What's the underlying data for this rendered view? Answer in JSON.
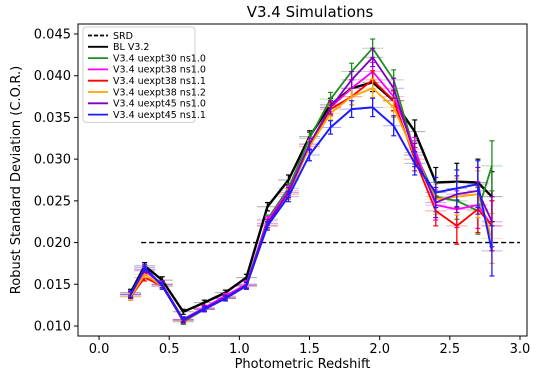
{
  "chart_data": {
    "type": "line",
    "title": "V3.4 Simulations",
    "xlabel": "Photometric Redshift",
    "ylabel": "Robust Standard Deviation (C.O.R.)",
    "xlim": [
      -0.15,
      3.05
    ],
    "ylim": [
      0.0088,
      0.0462
    ],
    "xticks": [
      0.0,
      0.5,
      1.0,
      1.5,
      2.0,
      2.5,
      3.0
    ],
    "xtick_labels": [
      "0.0",
      "0.5",
      "1.0",
      "1.5",
      "2.0",
      "2.5",
      "3.0"
    ],
    "yticks": [
      0.01,
      0.015,
      0.02,
      0.025,
      0.03,
      0.035,
      0.04,
      0.045
    ],
    "ytick_labels": [
      "0.010",
      "0.015",
      "0.020",
      "0.025",
      "0.030",
      "0.035",
      "0.040",
      "0.045"
    ],
    "grid": false,
    "legend_position": "top-left",
    "x": [
      0.225,
      0.325,
      0.45,
      0.6,
      0.75,
      0.9,
      1.05,
      1.2,
      1.35,
      1.5,
      1.65,
      1.8,
      1.95,
      2.1,
      2.25,
      2.4,
      2.55,
      2.7,
      2.8
    ],
    "reference": {
      "name": "SRD",
      "value": 0.02,
      "x_range": [
        0.3,
        3.0
      ],
      "color": "#000000",
      "dashed": true
    },
    "series": [
      {
        "name": "BL V3.2",
        "color": "#000000",
        "width": 2.4,
        "values": [
          0.014,
          0.0172,
          0.0155,
          0.0117,
          0.0128,
          0.014,
          0.0158,
          0.0243,
          0.0275,
          0.0327,
          0.0365,
          0.0385,
          0.0392,
          0.037,
          0.0333,
          0.0272,
          0.0273,
          0.0272,
          0.0255
        ]
      },
      {
        "name": "V3.4 uexpt30 ns1.0",
        "color": "#228b22",
        "width": 1.8,
        "values": [
          0.0138,
          0.0167,
          0.015,
          0.0105,
          0.012,
          0.0135,
          0.015,
          0.0228,
          0.0265,
          0.0325,
          0.0372,
          0.0405,
          0.0433,
          0.0395,
          0.0308,
          0.0255,
          0.025,
          0.0238,
          0.0292
        ]
      },
      {
        "name": "V3.4 uexpt38 ns1.0",
        "color": "#ff00ff",
        "width": 1.8,
        "values": [
          0.0138,
          0.0166,
          0.015,
          0.0108,
          0.0122,
          0.0136,
          0.015,
          0.0226,
          0.0262,
          0.0318,
          0.0362,
          0.0385,
          0.0405,
          0.0375,
          0.0312,
          0.0245,
          0.024,
          0.0245,
          0.022
        ]
      },
      {
        "name": "V3.4 uexpt38 ns1.1",
        "color": "#ff0000",
        "width": 1.8,
        "values": [
          0.0135,
          0.0158,
          0.0148,
          0.0106,
          0.012,
          0.0133,
          0.0148,
          0.022,
          0.0258,
          0.0315,
          0.036,
          0.0375,
          0.0395,
          0.037,
          0.03,
          0.0238,
          0.022,
          0.024,
          0.022
        ]
      },
      {
        "name": "V3.4 uexpt38 ns1.2",
        "color": "#ffa500",
        "width": 1.8,
        "values": [
          0.0135,
          0.0162,
          0.0148,
          0.0107,
          0.012,
          0.0134,
          0.0148,
          0.0222,
          0.0258,
          0.0315,
          0.0355,
          0.0375,
          0.0385,
          0.0362,
          0.0305,
          0.0252,
          0.0255,
          0.0258,
          0.0205
        ]
      },
      {
        "name": "V3.4 uexpt45 ns1.0",
        "color": "#8000c0",
        "width": 1.8,
        "values": [
          0.0137,
          0.0168,
          0.015,
          0.0108,
          0.0121,
          0.0134,
          0.0149,
          0.0223,
          0.026,
          0.0318,
          0.0362,
          0.0395,
          0.0422,
          0.0385,
          0.0305,
          0.0248,
          0.0258,
          0.0262,
          0.0225
        ]
      },
      {
        "name": "V3.4 uexpt45 ns1.1",
        "color": "#1c1cff",
        "width": 2.0,
        "values": [
          0.0138,
          0.017,
          0.0148,
          0.0107,
          0.012,
          0.0133,
          0.0148,
          0.022,
          0.0255,
          0.0305,
          0.0338,
          0.036,
          0.0362,
          0.034,
          0.0295,
          0.026,
          0.0265,
          0.027,
          0.019
        ]
      }
    ],
    "error_bars": {
      "y_error": [
        0.0004,
        0.0004,
        0.0004,
        0.0003,
        0.0003,
        0.0003,
        0.0004,
        0.0005,
        0.0006,
        0.0007,
        0.0008,
        0.001,
        0.0011,
        0.0012,
        0.0014,
        0.0018,
        0.0022,
        0.0028,
        0.003
      ],
      "x_half_width": [
        0.075,
        0.075,
        0.075,
        0.075,
        0.075,
        0.075,
        0.075,
        0.075,
        0.075,
        0.075,
        0.075,
        0.075,
        0.075,
        0.075,
        0.075,
        0.075,
        0.075,
        0.075,
        0.075
      ]
    }
  }
}
